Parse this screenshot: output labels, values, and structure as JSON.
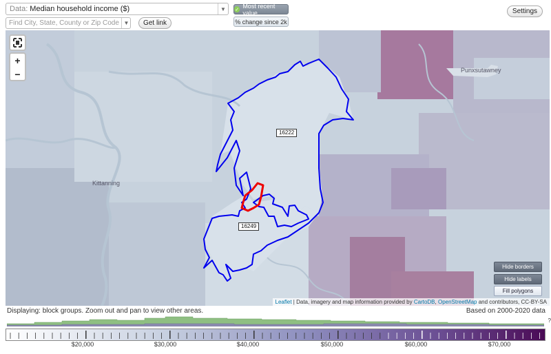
{
  "toolbar": {
    "data_prefix": "Data:",
    "data_value": "Median household income ($)",
    "search_placeholder": "Find City, State, County or Zip Code",
    "get_link_label": "Get link",
    "settings_label": "Settings",
    "most_recent_label": "Most recent value",
    "pct_change_label": "% change since 2k"
  },
  "map": {
    "city_labels": [
      "Kittanning",
      "Punxsutawney"
    ],
    "zip_labels": [
      "16222",
      "16249"
    ],
    "hide_borders_label": "Hide borders",
    "hide_labels_label": "Hide labels",
    "fill_polygons_label": "Fill polygons",
    "attribution": {
      "leaflet": "Leaflet",
      "mid": " | Data, imagery and map information provided by ",
      "cartodb": "CartoDB",
      "comma": ", ",
      "osm": "OpenStreetMap",
      "tail": " and contributors, CC-BY-SA"
    },
    "colors": {
      "region_border": "#0000ee",
      "selected_border": "#ee0000",
      "high_income": "#a3719b",
      "low_income": "#cdd9e3"
    }
  },
  "footer": {
    "displaying": "Displaying: block groups. Zoom out and pan to view other areas.",
    "based_on": "Based on 2000-2020 data",
    "scale_labels": [
      "$20,000",
      "$30,000",
      "$40,000",
      "$50,000",
      "$60,000",
      "$70,000"
    ],
    "help_mark": "?"
  },
  "icons": {
    "fullscreen": "fullscreen-icon",
    "zoom_in": "zoom-in-icon",
    "zoom_out": "zoom-out-icon",
    "check": "check-icon",
    "dropdown": "chevron-down-icon"
  }
}
